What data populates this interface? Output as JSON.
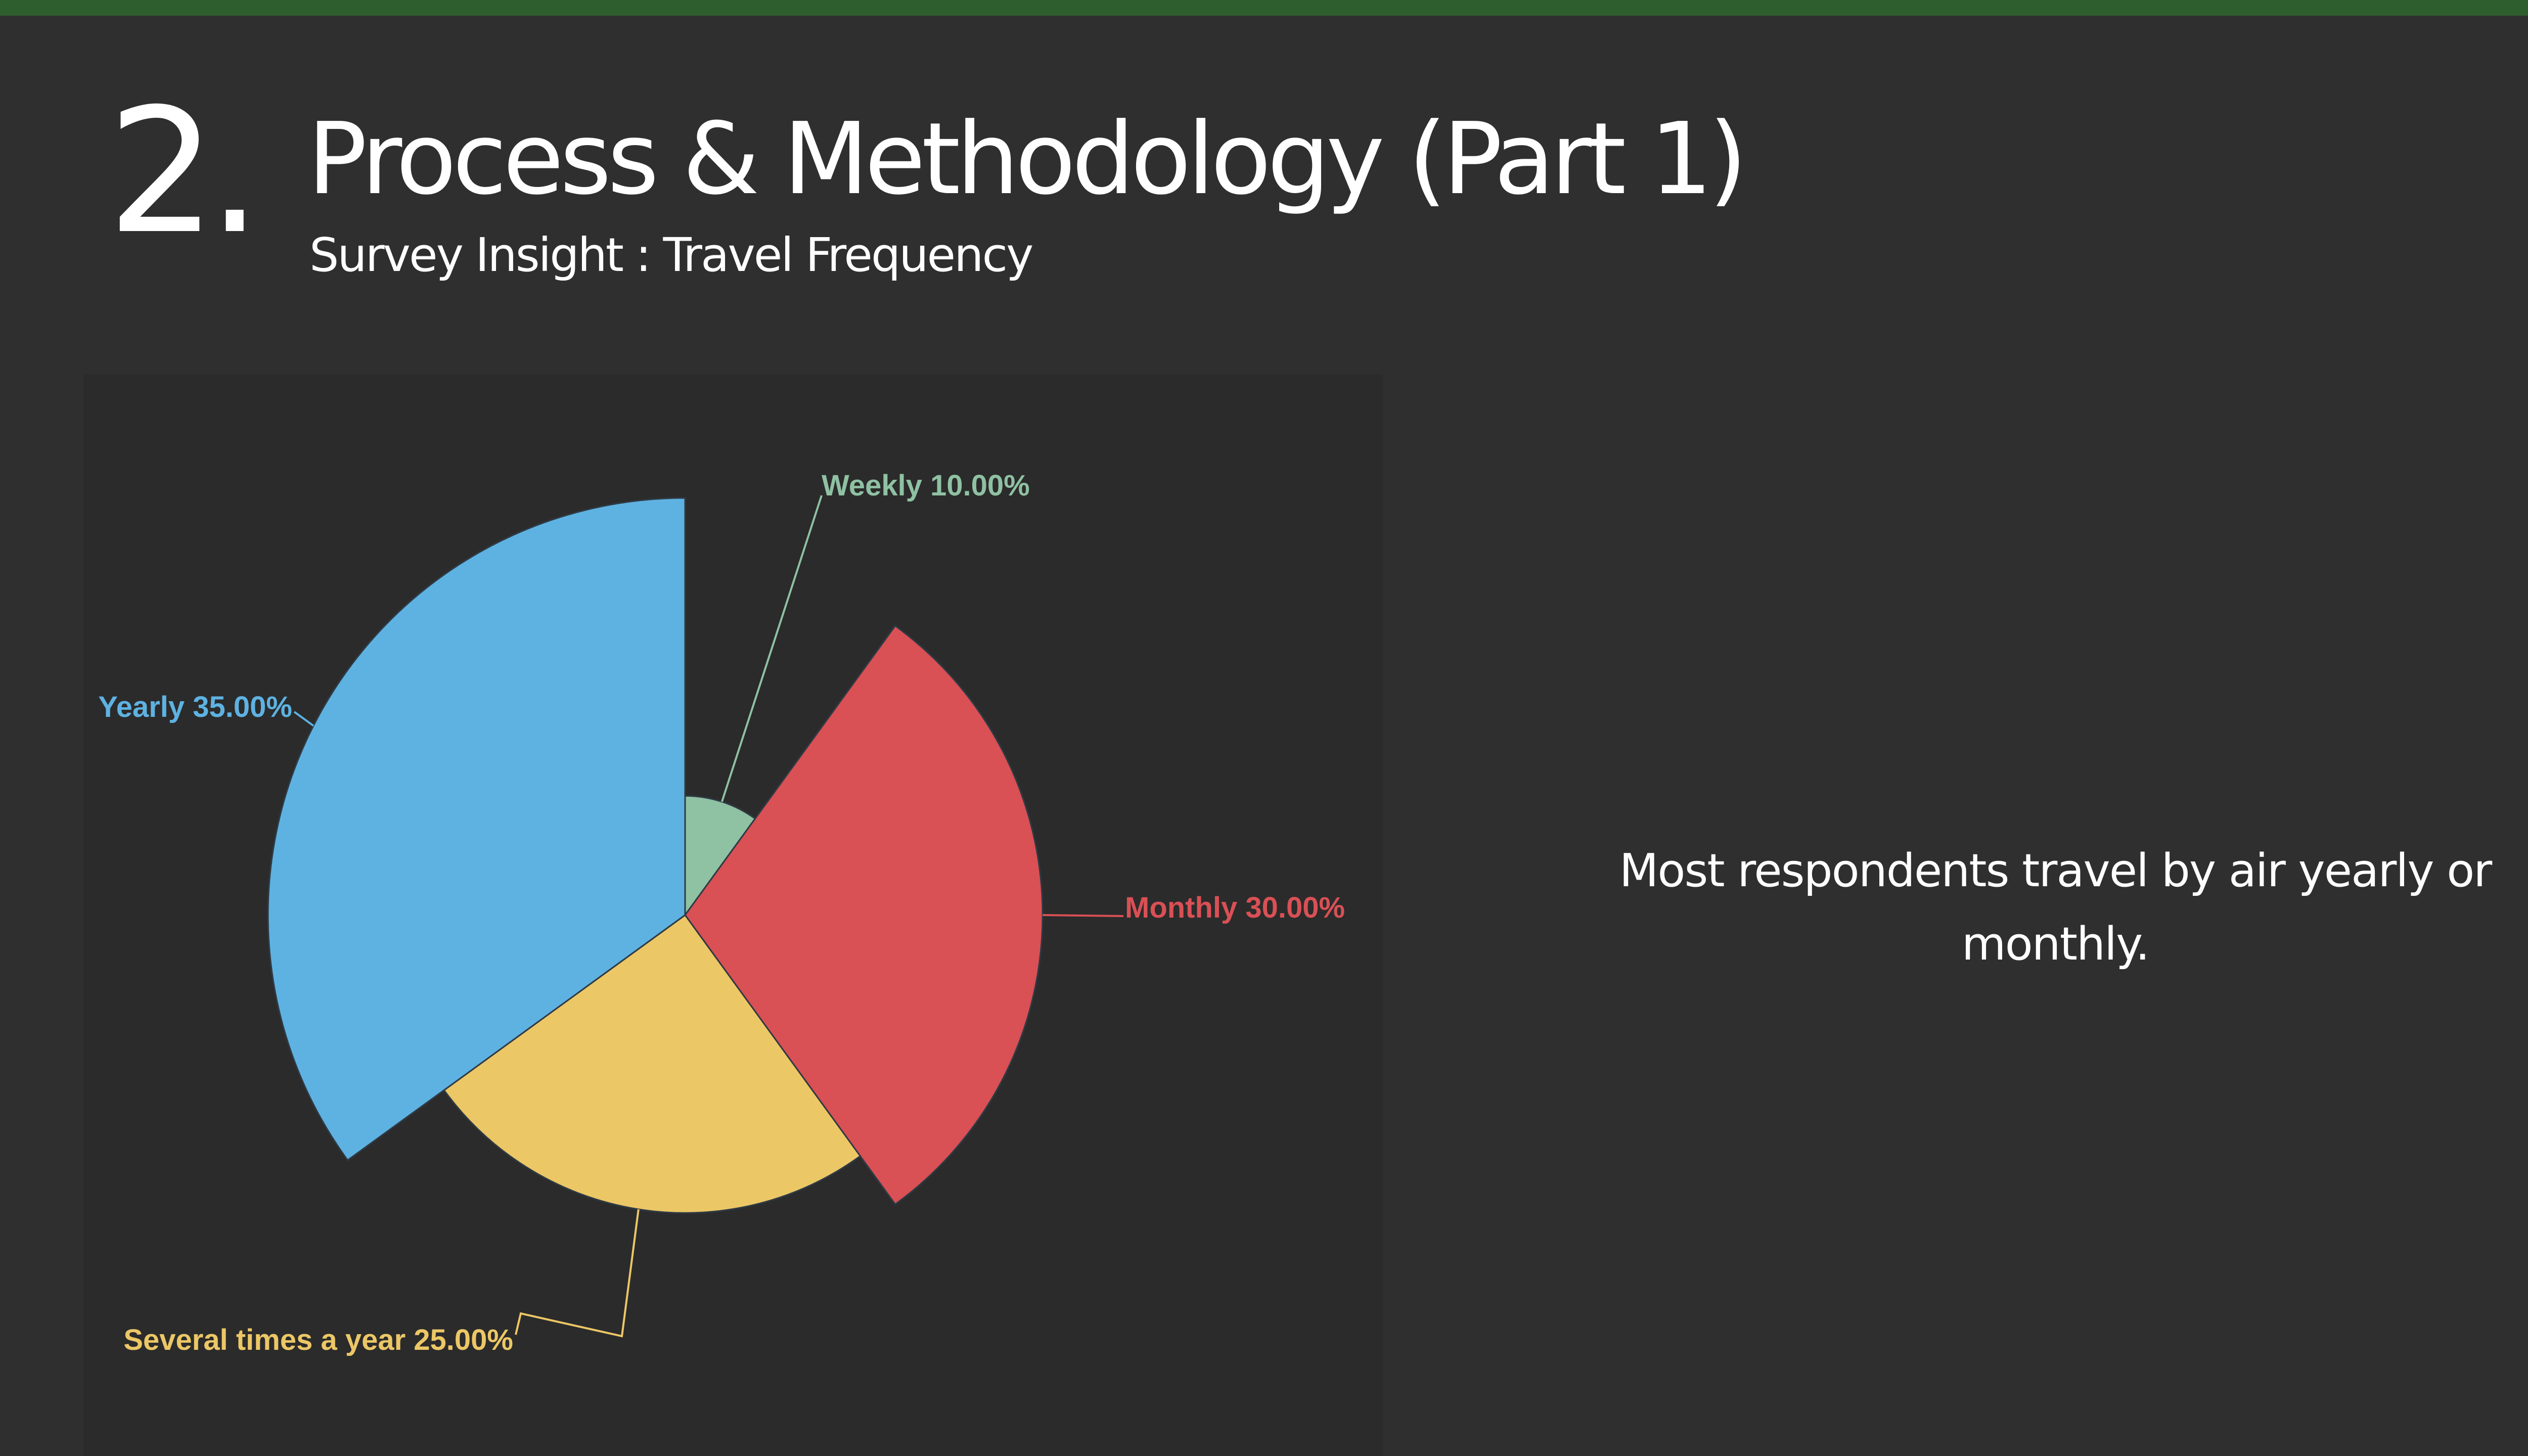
{
  "header": {
    "section_number": "2.",
    "title": "Process & Methodology (Part 1)",
    "subtitle": "Survey Insight : Travel Frequency"
  },
  "insight": {
    "text": "Most respondents travel by air yearly or monthly."
  },
  "colors": {
    "top_bar": "#2f5e2e",
    "background": "#2f2f2f",
    "chart_background": "#2b2b2b"
  },
  "chart_data": {
    "type": "pie",
    "variant": "rose (radius proportional to value)",
    "start_angle": "12 o'clock",
    "direction": "clockwise",
    "title": "",
    "legend": "none",
    "slices": [
      {
        "name": "Weekly",
        "value": 10,
        "label": "Weekly 10.00%",
        "color": "#8fc1a3"
      },
      {
        "name": "Monthly",
        "value": 30,
        "label": "Monthly 30.00%",
        "color": "#d95055"
      },
      {
        "name": "Several times a year",
        "value": 25,
        "label": "Several times a year 25.00%",
        "color": "#ecc766"
      },
      {
        "name": "Yearly",
        "value": 35,
        "label": "Yearly 35.00%",
        "color": "#5eb2e2"
      }
    ]
  }
}
